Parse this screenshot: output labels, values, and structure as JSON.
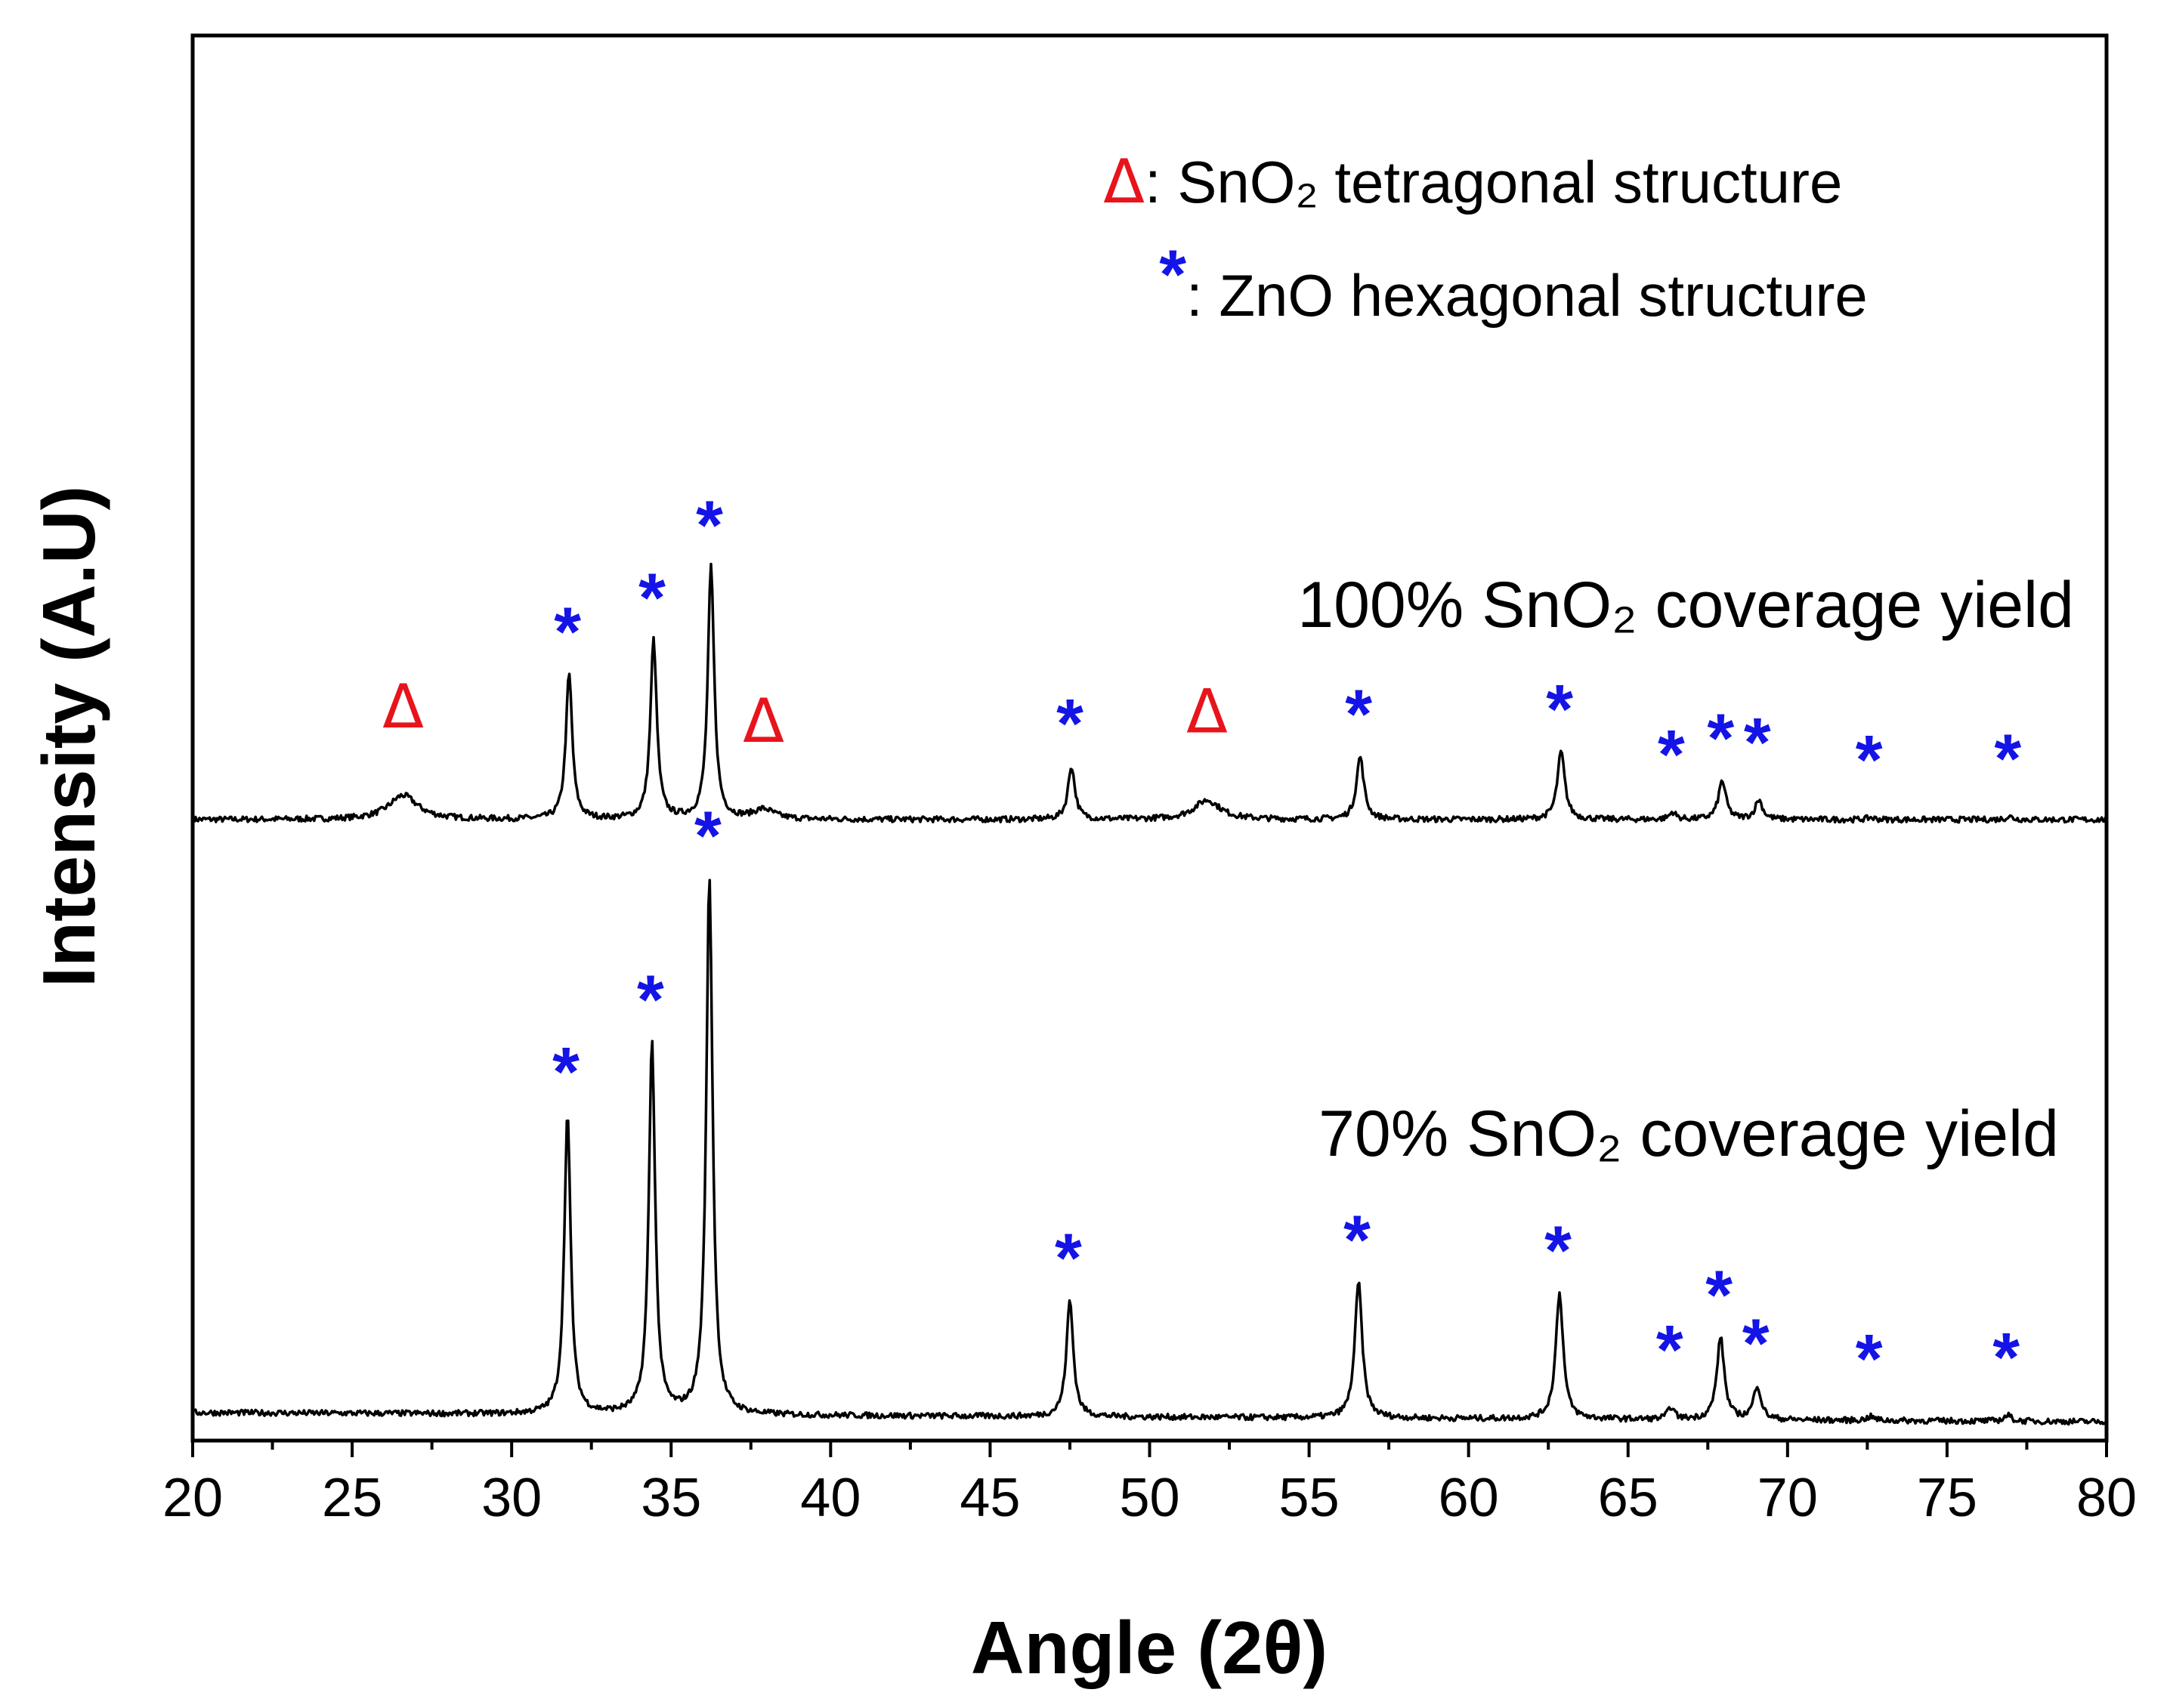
{
  "chart_data": {
    "type": "line",
    "title": "",
    "xlabel": "Angle (2θ)",
    "ylabel": "Intensity (A.U)",
    "xlim": [
      20,
      80
    ],
    "xticks": [
      "20",
      "25",
      "30",
      "35",
      "40",
      "45",
      "50",
      "55",
      "60",
      "65",
      "70",
      "75",
      "80"
    ],
    "legend": [
      {
        "symbol": "Δ",
        "label": ": SnO₂ tetragonal structure",
        "color": "#e8141c"
      },
      {
        "symbol": "*",
        "label": ": ZnO hexagonal structure",
        "color": "#1414e6"
      }
    ],
    "series": [
      {
        "name": "100% SnO₂ coverage yield",
        "baseline": 0,
        "peaks": [
          {
            "x": 26.6,
            "h": 0.05,
            "w": 0.55,
            "marker": "Δ"
          },
          {
            "x": 31.8,
            "h": 0.3,
            "w": 0.12,
            "marker": "*"
          },
          {
            "x": 34.45,
            "h": 0.37,
            "w": 0.12,
            "marker": "*"
          },
          {
            "x": 36.25,
            "h": 0.52,
            "w": 0.12,
            "marker": "*"
          },
          {
            "x": 37.9,
            "h": 0.02,
            "w": 0.4,
            "marker": "Δ"
          },
          {
            "x": 47.55,
            "h": 0.11,
            "w": 0.13,
            "marker": "*"
          },
          {
            "x": 51.8,
            "h": 0.04,
            "w": 0.5,
            "marker": "Δ"
          },
          {
            "x": 56.6,
            "h": 0.13,
            "w": 0.14,
            "marker": "*"
          },
          {
            "x": 62.9,
            "h": 0.14,
            "w": 0.14,
            "marker": "*"
          },
          {
            "x": 66.4,
            "h": 0.015,
            "w": 0.12,
            "marker": "*"
          },
          {
            "x": 67.95,
            "h": 0.08,
            "w": 0.14,
            "marker": "*"
          },
          {
            "x": 69.1,
            "h": 0.04,
            "w": 0.14,
            "marker": "*"
          },
          {
            "x": 72.6,
            "h": 0.004,
            "w": 0.14,
            "marker": "*"
          },
          {
            "x": 76.95,
            "h": 0.006,
            "w": 0.14,
            "marker": "*"
          }
        ]
      },
      {
        "name": "70% SnO₂ coverage yield",
        "baseline": 0,
        "peaks": [
          {
            "x": 31.75,
            "h": 0.62,
            "w": 0.12,
            "marker": "*"
          },
          {
            "x": 34.4,
            "h": 0.77,
            "w": 0.12,
            "marker": "*"
          },
          {
            "x": 36.2,
            "h": 1.11,
            "w": 0.12,
            "marker": "*"
          },
          {
            "x": 47.5,
            "h": 0.24,
            "w": 0.13,
            "marker": "*"
          },
          {
            "x": 56.55,
            "h": 0.28,
            "w": 0.14,
            "marker": "*"
          },
          {
            "x": 62.85,
            "h": 0.26,
            "w": 0.14,
            "marker": "*"
          },
          {
            "x": 66.35,
            "h": 0.025,
            "w": 0.12,
            "marker": "*"
          },
          {
            "x": 67.9,
            "h": 0.17,
            "w": 0.14,
            "marker": "*"
          },
          {
            "x": 69.05,
            "h": 0.07,
            "w": 0.14,
            "marker": "*"
          },
          {
            "x": 72.6,
            "h": 0.008,
            "w": 0.14,
            "marker": "*"
          },
          {
            "x": 76.9,
            "h": 0.012,
            "w": 0.14,
            "marker": "*"
          }
        ]
      }
    ]
  }
}
